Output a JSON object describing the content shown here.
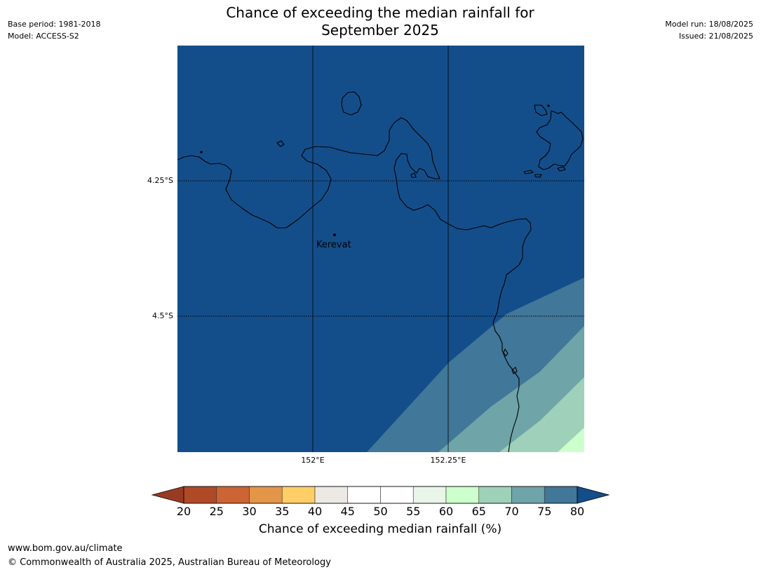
{
  "title": {
    "line1": "Chance of exceeding the median rainfall for",
    "line2": "September 2025"
  },
  "meta_left": {
    "base_period": "Base period: 1981-2018",
    "model": "Model: ACCESS-S2"
  },
  "meta_right": {
    "model_run": "Model run: 18/08/2025",
    "issued": "Issued: 21/08/2025"
  },
  "map": {
    "latitude_labels": [
      "4.25°S",
      "4.5°S"
    ],
    "longitude_labels": [
      "152°E",
      "152.25°E"
    ],
    "places": [
      {
        "name": "Kerevat"
      }
    ],
    "colors": {
      "over_80": "#134e8a",
      "75_80": "#417798",
      "70_75": "#6fa4a8",
      "65_70": "#9fd1ba",
      "60_65": "#ccffcc",
      "coastline": "#000000"
    }
  },
  "colorbar": {
    "ticks": [
      "20",
      "25",
      "30",
      "35",
      "40",
      "45",
      "50",
      "55",
      "60",
      "65",
      "70",
      "75",
      "80"
    ],
    "under_color": "#993b22",
    "over_color": "#134e8a",
    "colors": [
      "#b04a26",
      "#cc6433",
      "#e39548",
      "#ffce66",
      "#ece8e4",
      "#ffffff",
      "#ffffff",
      "#e8f5e8",
      "#ccffcc",
      "#9fd1ba",
      "#6fa4a8",
      "#417798"
    ],
    "label": "Chance of exceeding median rainfall (%)"
  },
  "footer": {
    "url": "www.bom.gov.au/climate",
    "copyright": "© Commonwealth of Australia 2025, Australian Bureau of Meteorology"
  }
}
